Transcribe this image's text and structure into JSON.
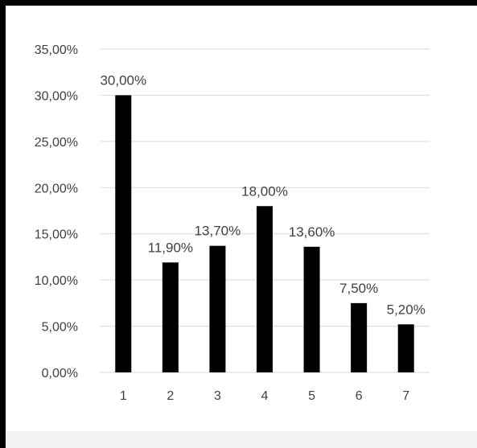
{
  "chart_data": {
    "type": "bar",
    "title": "",
    "xlabel": "",
    "ylabel": "",
    "categories": [
      "1",
      "2",
      "3",
      "4",
      "5",
      "6",
      "7"
    ],
    "values": [
      0.3,
      0.119,
      0.137,
      0.18,
      0.136,
      0.075,
      0.052
    ],
    "data_labels": [
      "30,00%",
      "11,90%",
      "13,70%",
      "18,00%",
      "13,60%",
      "7,50%",
      "5,20%"
    ],
    "ylim": [
      0,
      0.35
    ],
    "y_ticks": [
      0,
      0.05,
      0.1,
      0.15,
      0.2,
      0.25,
      0.3,
      0.35
    ],
    "y_tick_labels": [
      "0,00%",
      "5,00%",
      "10,00%",
      "15,00%",
      "20,00%",
      "25,00%",
      "30,00%",
      "35,00%"
    ],
    "grid": true,
    "legend": "none",
    "bar_color": "#000000",
    "grid_color": "#d9d9d9"
  }
}
